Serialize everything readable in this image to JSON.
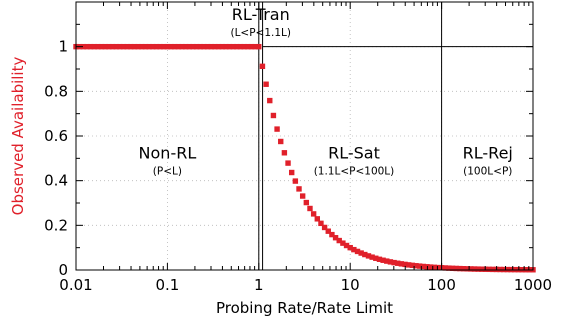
{
  "chart_data": {
    "type": "scatter",
    "xlabel": "Probing Rate/Rate Limit",
    "ylabel": "Observed Availability",
    "xscale": "log",
    "xlim": [
      0.01,
      1000
    ],
    "ylim": [
      0,
      1.2
    ],
    "x_ticks": [
      "0.01",
      "0.1",
      "1",
      "10",
      "100",
      "1000"
    ],
    "y_ticks": [
      "0",
      "0.2",
      "0.4",
      "0.6",
      "0.8",
      "1"
    ],
    "grid": true,
    "marker_color": "#e0202a",
    "series": [
      {
        "model": "availability = 1 for x <= 1; 1/x for x > 1",
        "x_start": 0.01,
        "x_end": 1000,
        "points_per_decade": 25
      }
    ],
    "boundaries": [
      1,
      1.1,
      100
    ],
    "regions": [
      {
        "id": "non-rl",
        "title": "Non-RL",
        "subtitle": "(P<L)",
        "x": 0.1,
        "y": 0.5
      },
      {
        "id": "rl-tran",
        "title": "RL-Tran",
        "subtitle": "(L<P<1.1L)",
        "x": 1.05,
        "y": 1.12
      },
      {
        "id": "rl-sat",
        "title": "RL-Sat",
        "subtitle": "(1.1L<P<100L)",
        "x": 11,
        "y": 0.5
      },
      {
        "id": "rl-rej",
        "title": "RL-Rej",
        "subtitle": "(100L<P)",
        "x": 320,
        "y": 0.5
      }
    ]
  }
}
